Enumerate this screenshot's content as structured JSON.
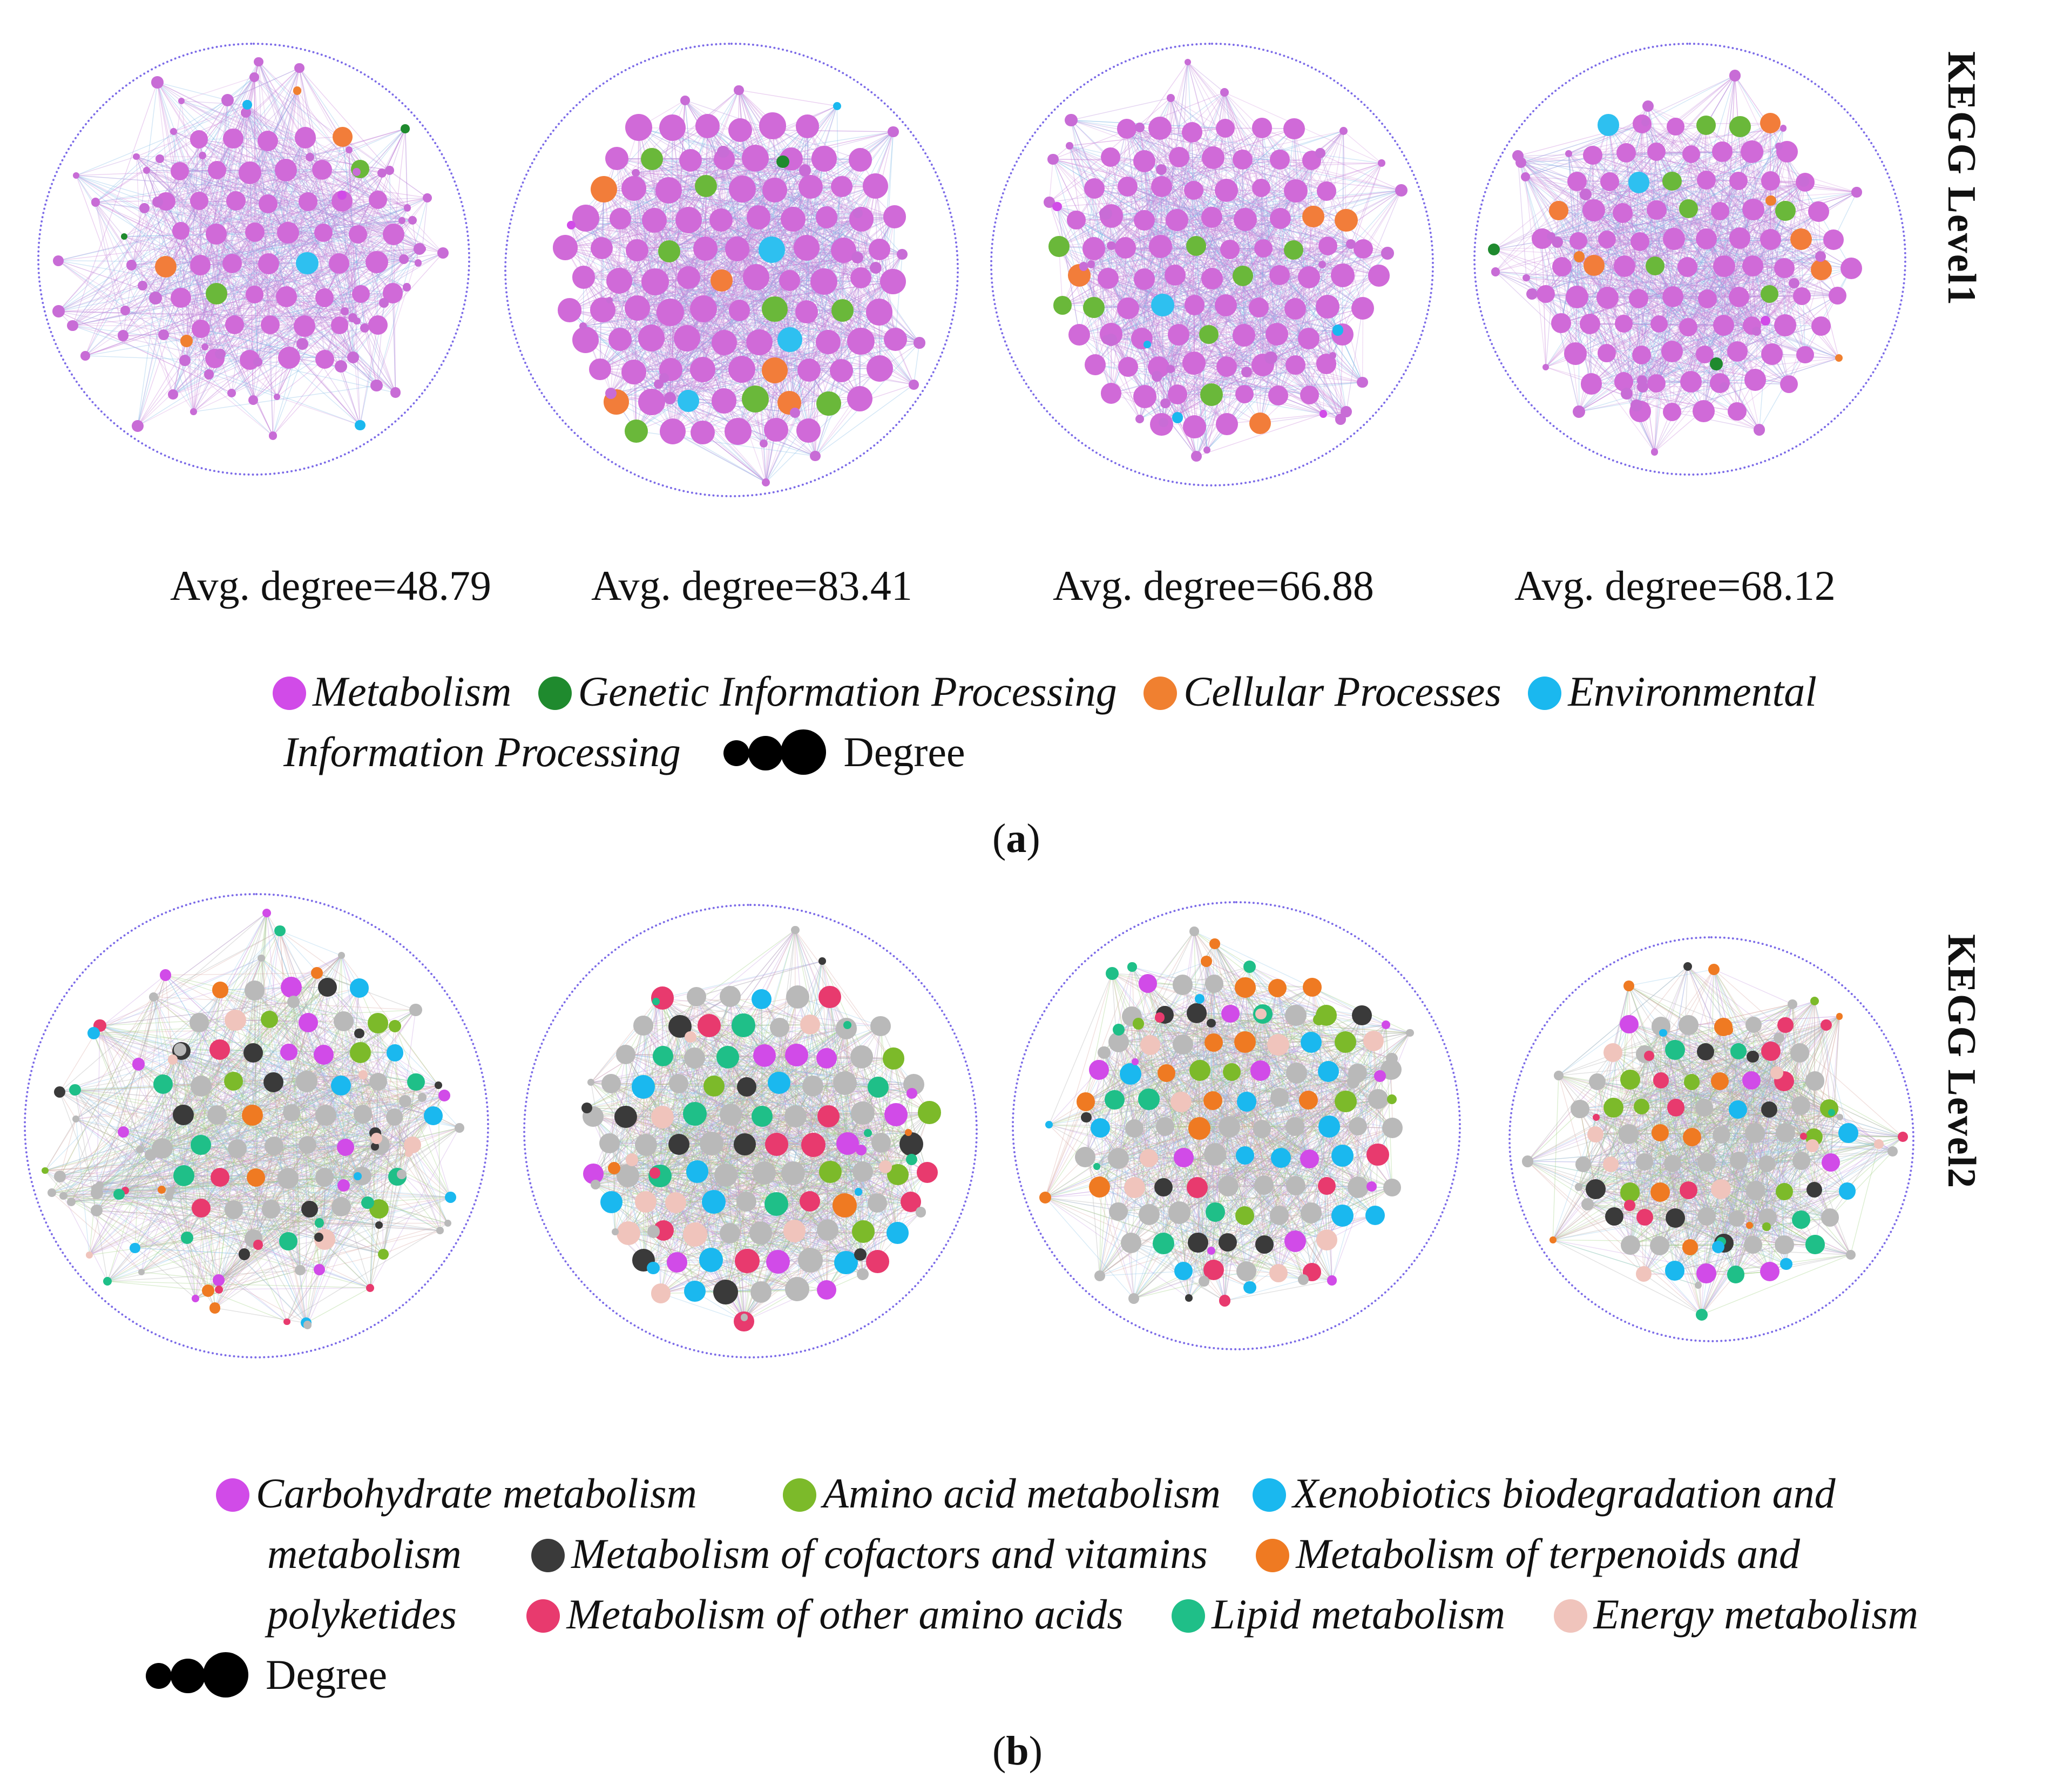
{
  "panels": [
    {
      "id": "a",
      "caption_letter": "a",
      "level_label": "KEGG Level1",
      "avg_degree_texts": [
        "Avg. degree=48.79",
        "Avg. degree=83.41",
        "Avg. degree=66.88",
        "Avg. degree=68.12"
      ],
      "legend": [
        {
          "label": "Metabolism",
          "color": "#d14be8"
        },
        {
          "label": "Genetic Information Processing",
          "color": "#1f8a2e"
        },
        {
          "label": "Cellular Processes",
          "color": "#f08030"
        },
        {
          "label": "Environmental Information Processing",
          "color": "#1ab8ef"
        }
      ],
      "degree_label": "Degree"
    },
    {
      "id": "b",
      "caption_letter": "b",
      "level_label": "KEGG Level2",
      "legend": [
        {
          "label": "Carbohydrate metabolism",
          "color": "#d14be8"
        },
        {
          "label": "Amino acid metabolism",
          "color": "#7cba2a"
        },
        {
          "label": "Xenobiotics biodegradation and metabolism",
          "color": "#1ab8ef"
        },
        {
          "label": "Metabolism of cofactors and vitamins",
          "color": "#3a3a3a"
        },
        {
          "label": "Metabolism of terpenoids and polyketides",
          "color": "#ef7a22"
        },
        {
          "label": "Metabolism of other amino acids",
          "color": "#e83a6e"
        },
        {
          "label": "Lipid metabolism",
          "color": "#1fbf88"
        },
        {
          "label": "Energy metabolism",
          "color": "#f0c4bc"
        }
      ],
      "degree_label": "Degree"
    }
  ],
  "colors": {
    "ring": "#7c6be8",
    "level1_node_pink": "#d06ad8",
    "level2_node_grey": "#b9b9b9"
  }
}
